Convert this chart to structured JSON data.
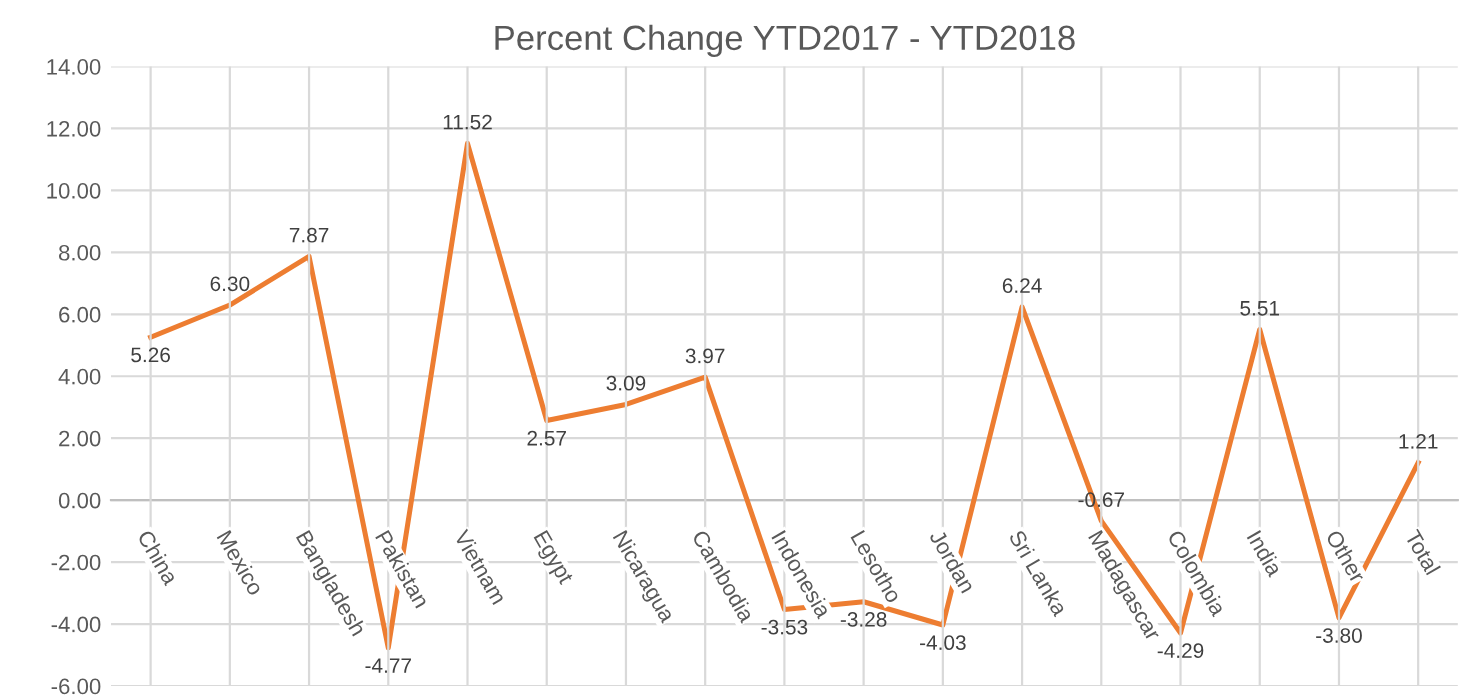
{
  "chart_data": {
    "type": "line",
    "title": "Percent Change YTD2017 - YTD2018",
    "categories": [
      "China",
      "Mexico",
      "Bangladesh",
      "Pakistan",
      "Vietnam",
      "Egypt",
      "Nicaragua",
      "Cambodia",
      "Indonesia",
      "Lesotho",
      "Jordan",
      "Sri Lanka",
      "Madagascar",
      "Colombia",
      "India",
      "Other",
      "Total"
    ],
    "values": [
      5.26,
      6.3,
      7.87,
      -4.77,
      11.52,
      2.57,
      3.09,
      3.97,
      -3.53,
      -3.28,
      -4.03,
      6.24,
      -0.67,
      -4.29,
      5.51,
      -3.8,
      1.21
    ],
    "value_labels": [
      "5.26",
      "6.30",
      "7.87",
      "-4.77",
      "11.52",
      "2.57",
      "3.09",
      "3.97",
      "-3.53",
      "-3.28",
      "-4.03",
      "6.24",
      "-0.67",
      "-4.29",
      "5.51",
      "-3.80",
      "1.21"
    ],
    "color": "#ed7d31",
    "ylim": [
      -6,
      14
    ],
    "yticks": [
      {
        "value": -6,
        "label": "-6.00"
      },
      {
        "value": -4,
        "label": "-4.00"
      },
      {
        "value": -2,
        "label": "-2.00"
      },
      {
        "value": 0,
        "label": "0.00"
      },
      {
        "value": 2,
        "label": "2.00"
      },
      {
        "value": 4,
        "label": "4.00"
      },
      {
        "value": 6,
        "label": "6.00"
      },
      {
        "value": 8,
        "label": "8.00"
      },
      {
        "value": 10,
        "label": "10.00"
      },
      {
        "value": 12,
        "label": "12.00"
      },
      {
        "value": 14,
        "label": "14.00"
      }
    ],
    "grid": true,
    "marker": "none",
    "line_style": "solid"
  }
}
